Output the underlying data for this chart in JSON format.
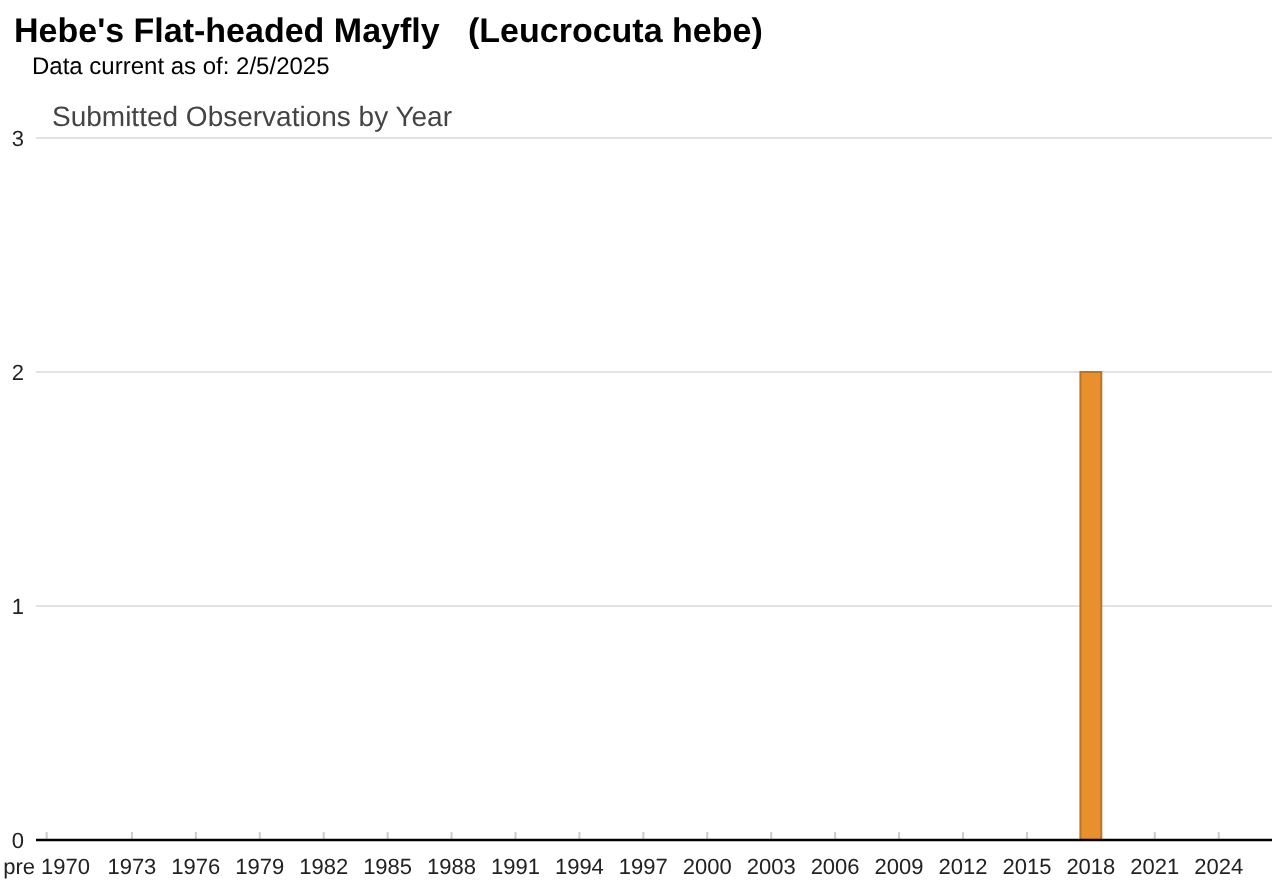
{
  "chart_data": {
    "type": "bar",
    "title": "Hebe's Flat-headed Mayfly   (Leucrocuta hebe)",
    "subtitle": "Data current as of: 2/5/2025",
    "annotations": [
      "Submitted Observations by Year"
    ],
    "categories": [
      "pre 1970",
      null,
      null,
      null,
      "1973",
      null,
      null,
      "1976",
      null,
      null,
      "1979",
      null,
      null,
      "1982",
      null,
      null,
      "1985",
      null,
      null,
      "1988",
      null,
      null,
      "1991",
      null,
      null,
      "1994",
      null,
      null,
      "1997",
      null,
      null,
      "2000",
      null,
      null,
      "2003",
      null,
      null,
      "2006",
      null,
      null,
      "2009",
      null,
      null,
      "2012",
      null,
      null,
      "2015",
      null,
      null,
      "2018",
      null,
      null,
      "2021",
      null,
      null,
      "2024",
      null,
      null
    ],
    "values": [
      0,
      0,
      0,
      0,
      0,
      0,
      0,
      0,
      0,
      0,
      0,
      0,
      0,
      0,
      0,
      0,
      0,
      0,
      0,
      0,
      0,
      0,
      0,
      0,
      0,
      0,
      0,
      0,
      0,
      0,
      0,
      0,
      0,
      0,
      0,
      0,
      0,
      0,
      0,
      0,
      0,
      0,
      0,
      0,
      0,
      0,
      0,
      0,
      0,
      2,
      0,
      0,
      0,
      0,
      0,
      0,
      0,
      0
    ],
    "color": "#e8902e",
    "ylim": [
      0,
      3
    ],
    "yticks": [
      0,
      1,
      2,
      3
    ],
    "grid": "y"
  }
}
